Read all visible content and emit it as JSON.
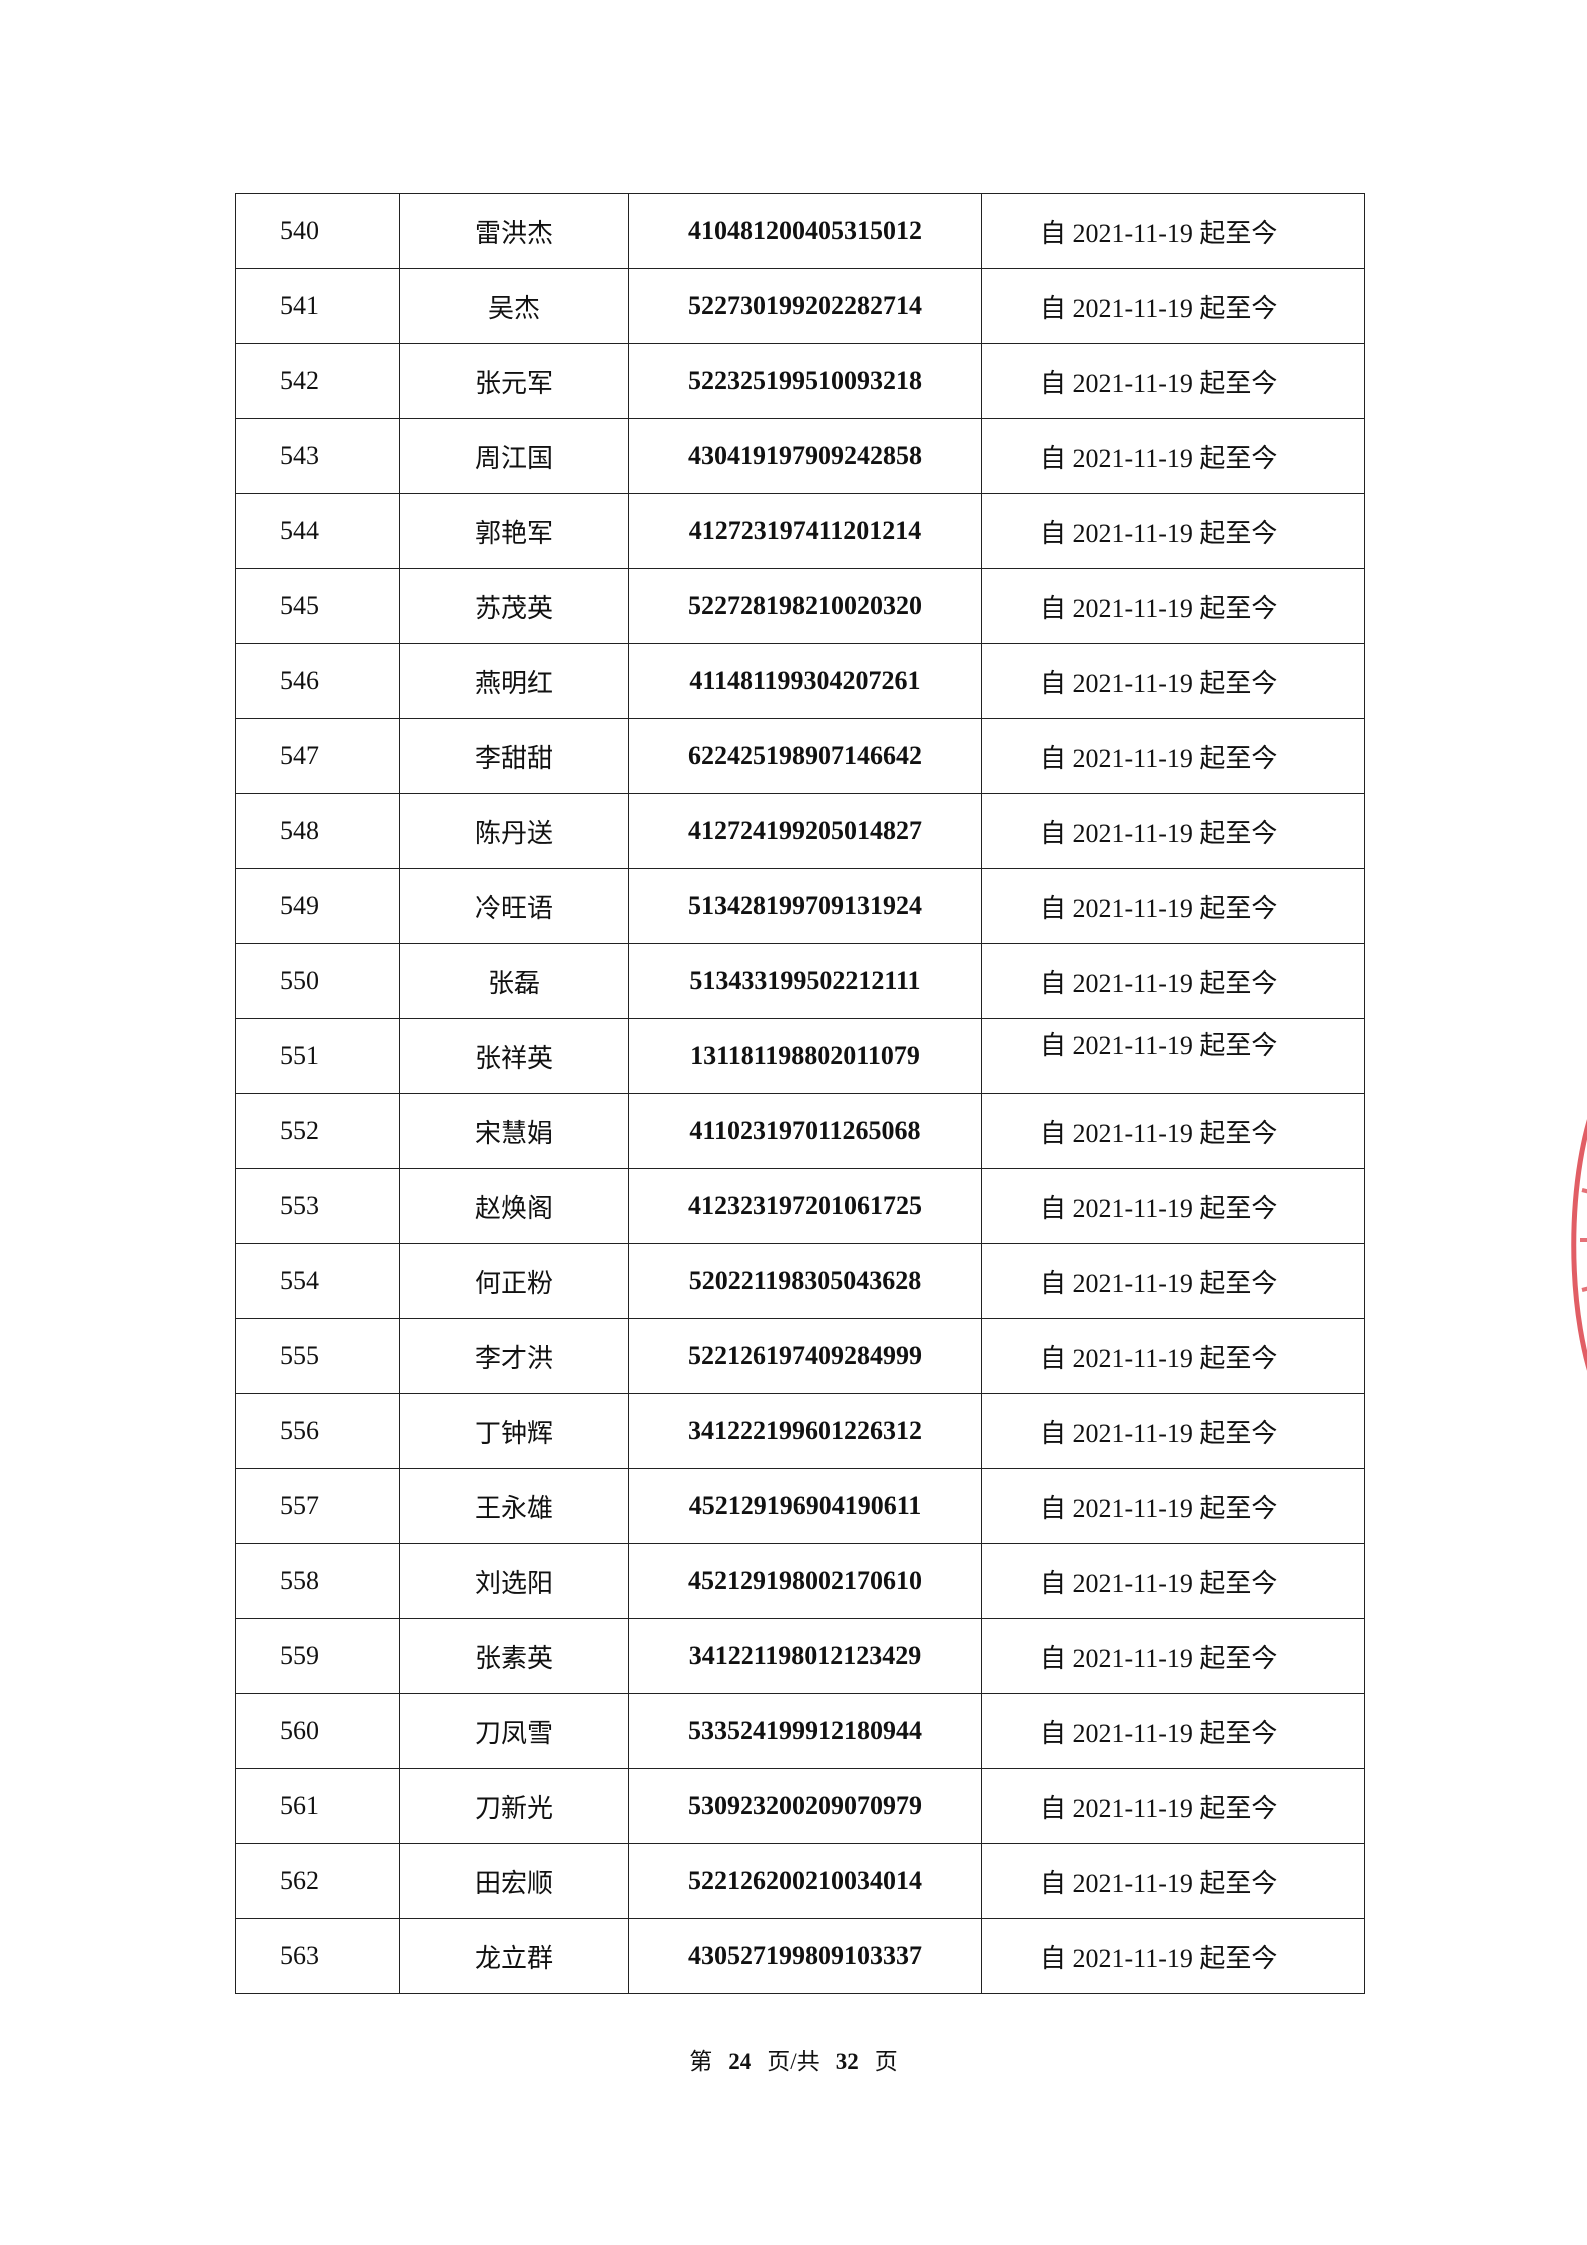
{
  "rows": [
    {
      "no": "540",
      "name": "雷洪杰",
      "id": "410481200405315012",
      "period": "自 2021-11-19 起至今"
    },
    {
      "no": "541",
      "name": "吴杰",
      "id": "522730199202282714",
      "period": "自 2021-11-19 起至今"
    },
    {
      "no": "542",
      "name": "张元军",
      "id": "522325199510093218",
      "period": "自 2021-11-19 起至今"
    },
    {
      "no": "543",
      "name": "周江国",
      "id": "430419197909242858",
      "period": "自 2021-11-19 起至今"
    },
    {
      "no": "544",
      "name": "郭艳军",
      "id": "412723197411201214",
      "period": "自 2021-11-19 起至今"
    },
    {
      "no": "545",
      "name": "苏茂英",
      "id": "522728198210020320",
      "period": "自 2021-11-19 起至今"
    },
    {
      "no": "546",
      "name": "燕明红",
      "id": "411481199304207261",
      "period": "自 2021-11-19 起至今"
    },
    {
      "no": "547",
      "name": "李甜甜",
      "id": "622425198907146642",
      "period": "自 2021-11-19 起至今"
    },
    {
      "no": "548",
      "name": "陈丹送",
      "id": "412724199205014827",
      "period": "自 2021-11-19 起至今"
    },
    {
      "no": "549",
      "name": "冷旺语",
      "id": "513428199709131924",
      "period": "自 2021-11-19 起至今"
    },
    {
      "no": "550",
      "name": "张磊",
      "id": "513433199502212111",
      "period": "自 2021-11-19 起至今"
    },
    {
      "no": "551",
      "name": "张祥英",
      "id": "131181198802011079",
      "period": "自 2021-11-19 起至今"
    },
    {
      "no": "552",
      "name": "宋慧娟",
      "id": "411023197011265068",
      "period": "自 2021-11-19 起至今"
    },
    {
      "no": "553",
      "name": "赵焕阁",
      "id": "412323197201061725",
      "period": "自 2021-11-19 起至今"
    },
    {
      "no": "554",
      "name": "何正粉",
      "id": "520221198305043628",
      "period": "自 2021-11-19 起至今"
    },
    {
      "no": "555",
      "name": "李才洪",
      "id": "522126197409284999",
      "period": "自 2021-11-19 起至今"
    },
    {
      "no": "556",
      "name": "丁钟辉",
      "id": "341222199601226312",
      "period": "自 2021-11-19 起至今"
    },
    {
      "no": "557",
      "name": "王永雄",
      "id": "452129196904190611",
      "period": "自 2021-11-19 起至今"
    },
    {
      "no": "558",
      "name": "刘选阳",
      "id": "452129198002170610",
      "period": "自 2021-11-19 起至今"
    },
    {
      "no": "559",
      "name": "张素英",
      "id": "341221198012123429",
      "period": "自 2021-11-19 起至今"
    },
    {
      "no": "560",
      "name": "刀凤雪",
      "id": "533524199912180944",
      "period": "自 2021-11-19 起至今"
    },
    {
      "no": "561",
      "name": "刀新光",
      "id": "530923200209070979",
      "period": "自 2021-11-19 起至今"
    },
    {
      "no": "562",
      "name": "田宏顺",
      "id": "522126200210034014",
      "period": "自 2021-11-19 起至今"
    },
    {
      "no": "563",
      "name": "龙立群",
      "id": "430527199809103337",
      "period": "自 2021-11-19 起至今"
    }
  ],
  "footer": {
    "prefix": "第",
    "current_page": "24",
    "middle": "页/共",
    "total_pages": "32",
    "suffix": "页"
  },
  "stamp_color": "#d9363e"
}
